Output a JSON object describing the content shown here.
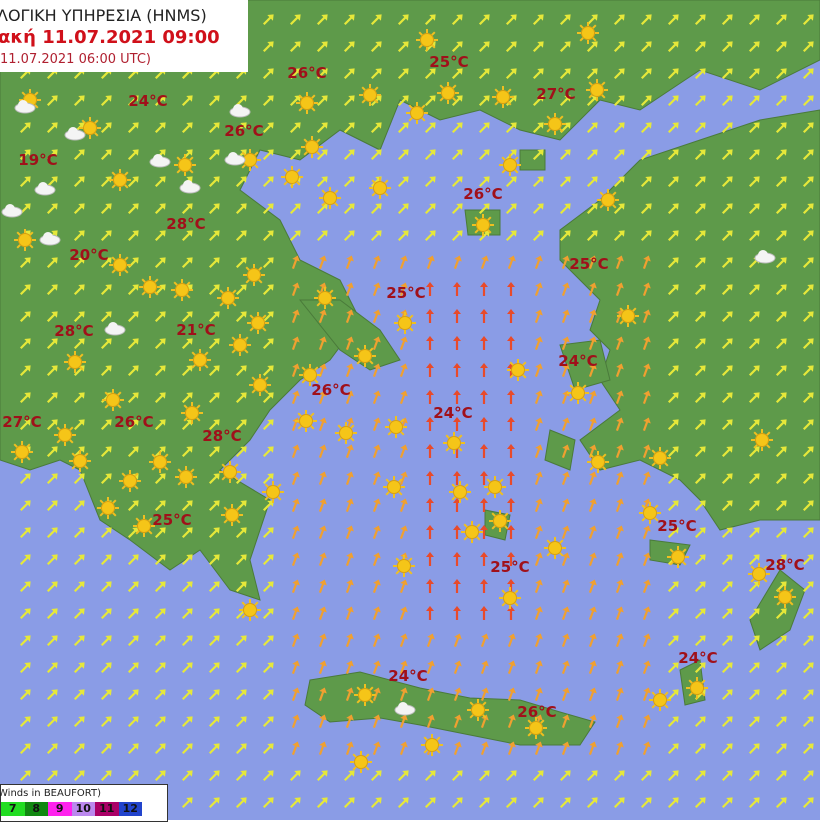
{
  "header": {
    "agency": "ΛΟΓΙΚΗ ΥΠΗΡΕΣΙΑ (HNMS)",
    "forecast_time": "ακή 11.07.2021 09:00",
    "run_time": "11.07.2021 06:00 UTC)"
  },
  "legend": {
    "title": "Winds in BEAUFORT)",
    "scale": [
      {
        "label": "7",
        "color": "#22dd22"
      },
      {
        "label": "8",
        "color": "#118811"
      },
      {
        "label": "9",
        "color": "#ff22ee"
      },
      {
        "label": "10",
        "color": "#bb88ee"
      },
      {
        "label": "11",
        "color": "#aa0066"
      },
      {
        "label": "12",
        "color": "#2244cc"
      }
    ]
  },
  "colors": {
    "sea": "#8a9ce6",
    "land": "#5e9a4a",
    "temperature": "#a0101a",
    "wind_light": "#e6e83a",
    "wind_moderate": "#f0a030",
    "wind_strong": "#e84a2a"
  },
  "temperatures": [
    "26°C",
    "25°C",
    "24°C",
    "27°C",
    "26°C",
    "19°C",
    "26°C",
    "28°C",
    "20°C",
    "25°C",
    "25°C",
    "28°C",
    "21°C",
    "24°C",
    "26°C",
    "24°C",
    "27°C",
    "26°C",
    "28°C",
    "25°C",
    "25°C",
    "25°C",
    "28°C",
    "24°C",
    "24°C",
    "26°C"
  ],
  "icons": {
    "weather": "sun-icon",
    "cloud": "cloud-icon",
    "wind": "wind-arrow-icon"
  }
}
